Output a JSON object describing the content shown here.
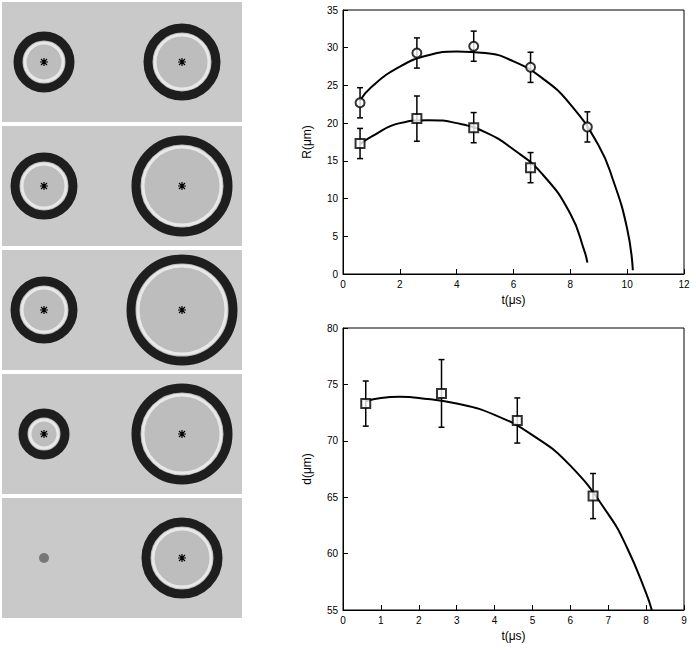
{
  "chart_data": [
    {
      "type": "scatter",
      "x_label": "t(μs)",
      "y_label": "R(μm)",
      "xlim": [
        0,
        12
      ],
      "xticks": [
        0,
        2,
        4,
        6,
        8,
        10,
        12
      ],
      "ylim": [
        0,
        35
      ],
      "yticks": [
        0,
        5,
        10,
        15,
        20,
        25,
        30,
        35
      ],
      "grid": false,
      "series": [
        {
          "type": "scatter",
          "marker": "circle",
          "color": "#000000",
          "x": [
            0.6,
            2.6,
            4.6,
            6.6,
            8.6
          ],
          "values": [
            22.7,
            29.3,
            30.2,
            27.4,
            19.5
          ],
          "errors": [
            2,
            2,
            2,
            2,
            2
          ]
        },
        {
          "type": "scatter",
          "marker": "square",
          "color": "#000000",
          "x": [
            0.6,
            2.6,
            4.6,
            6.6
          ],
          "values": [
            17.3,
            20.6,
            19.4,
            14.1
          ],
          "errors": [
            2,
            3,
            2,
            2
          ]
        },
        {
          "type": "line",
          "line_style": "solid",
          "color": "#000000",
          "x": [
            0.6,
            1,
            2,
            3,
            4,
            5,
            6,
            7,
            8,
            9,
            9.5,
            10,
            10.2
          ],
          "values": [
            23,
            24.8,
            27.5,
            29,
            29.5,
            29.3,
            28.2,
            26,
            22.5,
            17,
            12.5,
            6,
            0.5
          ]
        },
        {
          "type": "line",
          "line_style": "solid",
          "color": "#000000",
          "x": [
            0.6,
            1,
            2,
            3,
            4,
            5,
            6,
            7,
            8,
            8.5,
            8.6
          ],
          "values": [
            17.2,
            18.2,
            20,
            20.4,
            20,
            18.8,
            16.5,
            13.3,
            8,
            3,
            1.5
          ]
        }
      ]
    },
    {
      "type": "scatter",
      "x_label": "t(μs)",
      "y_label": "d(μm)",
      "xlim": [
        0,
        9
      ],
      "xticks": [
        0,
        1,
        2,
        3,
        4,
        5,
        6,
        7,
        8,
        9
      ],
      "ylim": [
        55,
        80
      ],
      "yticks": [
        55,
        60,
        65,
        70,
        75,
        80
      ],
      "grid": false,
      "series": [
        {
          "type": "scatter",
          "marker": "square",
          "color": "#000000",
          "x": [
            0.6,
            2.6,
            4.6,
            6.6
          ],
          "values": [
            73.3,
            74.2,
            71.8,
            65.1
          ],
          "errors": [
            2,
            3,
            2,
            2
          ]
        },
        {
          "type": "line",
          "line_style": "solid",
          "color": "#000000",
          "x": [
            0.6,
            1,
            1.5,
            2,
            3,
            4,
            5,
            6,
            7,
            7.5,
            8,
            8.15
          ],
          "values": [
            73.5,
            73.8,
            73.9,
            73.8,
            73.3,
            72.3,
            70.5,
            67.8,
            63.5,
            60.5,
            56.5,
            55
          ]
        }
      ]
    }
  ]
}
